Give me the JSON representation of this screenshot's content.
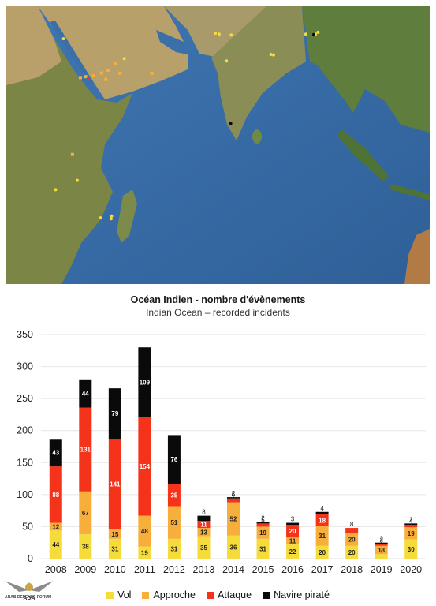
{
  "header": {
    "title": "Océan Indien - nombre d'évènements",
    "subtitle": "Indian Ocean – recorded incidents"
  },
  "logo": {
    "abbrev": "ADA",
    "name": "ARAB DEFENSE FORUM"
  },
  "colors": {
    "vol": "#f6dc3a",
    "approche": "#f7ae3a",
    "attaque": "#f5331b",
    "navire": "#0a0a0a",
    "ocean": "#3a6fa8",
    "land": "#7f8a4a"
  },
  "map": {
    "markers": [
      {
        "type": "approche",
        "lon": 44.0,
        "lat": 12.6
      },
      {
        "type": "approche",
        "lon": 45.0,
        "lat": 12.8
      },
      {
        "type": "approche",
        "lon": 46.5,
        "lat": 13.0
      },
      {
        "type": "approche",
        "lon": 48.0,
        "lat": 13.6
      },
      {
        "type": "approche",
        "lon": 49.2,
        "lat": 14.2
      },
      {
        "type": "approche",
        "lon": 50.6,
        "lat": 15.6
      },
      {
        "type": "approche",
        "lon": 48.8,
        "lat": 12.2
      },
      {
        "type": "approche",
        "lon": 51.5,
        "lat": 13.5
      },
      {
        "type": "approche",
        "lon": 57.5,
        "lat": 13.5
      },
      {
        "type": "approche",
        "lon": 42.5,
        "lat": -4.0
      },
      {
        "type": "attaque",
        "lon": 45.5,
        "lat": 12.4
      },
      {
        "type": "vol",
        "lon": 40.8,
        "lat": 21.0
      },
      {
        "type": "vol",
        "lon": 52.3,
        "lat": 16.7
      },
      {
        "type": "vol",
        "lon": 69.5,
        "lat": 22.2
      },
      {
        "type": "vol",
        "lon": 70.2,
        "lat": 22.0
      },
      {
        "type": "vol",
        "lon": 72.5,
        "lat": 21.8
      },
      {
        "type": "vol",
        "lon": 71.6,
        "lat": 16.2
      },
      {
        "type": "vol",
        "lon": 80.0,
        "lat": 17.6
      },
      {
        "type": "vol",
        "lon": 80.5,
        "lat": 17.5
      },
      {
        "type": "vol",
        "lon": 86.6,
        "lat": 22.0
      },
      {
        "type": "vol",
        "lon": 88.4,
        "lat": 22.0
      },
      {
        "type": "vol",
        "lon": 88.9,
        "lat": 22.4
      },
      {
        "type": "vol",
        "lon": 39.3,
        "lat": -11.6
      },
      {
        "type": "vol",
        "lon": 43.4,
        "lat": -9.6
      },
      {
        "type": "vol",
        "lon": 47.8,
        "lat": -17.7
      },
      {
        "type": "vol",
        "lon": 49.9,
        "lat": -17.3
      },
      {
        "type": "vol",
        "lon": 49.8,
        "lat": -17.9
      },
      {
        "type": "navire",
        "lon": 88.1,
        "lat": 21.9
      },
      {
        "type": "navire",
        "lon": 72.4,
        "lat": 2.7
      }
    ]
  },
  "chart_data": {
    "type": "bar",
    "stacked": true,
    "title": "Océan Indien - nombre d'évènements",
    "subtitle": "Indian Ocean – recorded incidents",
    "categories": [
      "2008",
      "2009",
      "2010",
      "2011",
      "2012",
      "2013",
      "2014",
      "2015",
      "2016",
      "2017",
      "2018",
      "2019",
      "2020"
    ],
    "ylim": [
      0,
      350
    ],
    "yticks": [
      0,
      50,
      100,
      150,
      200,
      250,
      300,
      350
    ],
    "grid": true,
    "legend_position": "bottom",
    "series": [
      {
        "name": "Vol",
        "color": "#f6dc3a",
        "values": [
          44,
          38,
          31,
          19,
          31,
          35,
          36,
          31,
          22,
          20,
          20,
          7,
          30
        ]
      },
      {
        "name": "Approche",
        "color": "#f7ae3a",
        "values": [
          12,
          67,
          15,
          48,
          51,
          13,
          52,
          19,
          11,
          31,
          20,
          13,
          19
        ]
      },
      {
        "name": "Attaque",
        "color": "#f5331b",
        "values": [
          88,
          131,
          141,
          154,
          35,
          11,
          6,
          5,
          20,
          18,
          8,
          3,
          4
        ]
      },
      {
        "name": "Navire piraté",
        "color": "#0a0a0a",
        "values": [
          43,
          44,
          79,
          109,
          76,
          8,
          2,
          2,
          3,
          4,
          0,
          2,
          2
        ]
      }
    ]
  }
}
